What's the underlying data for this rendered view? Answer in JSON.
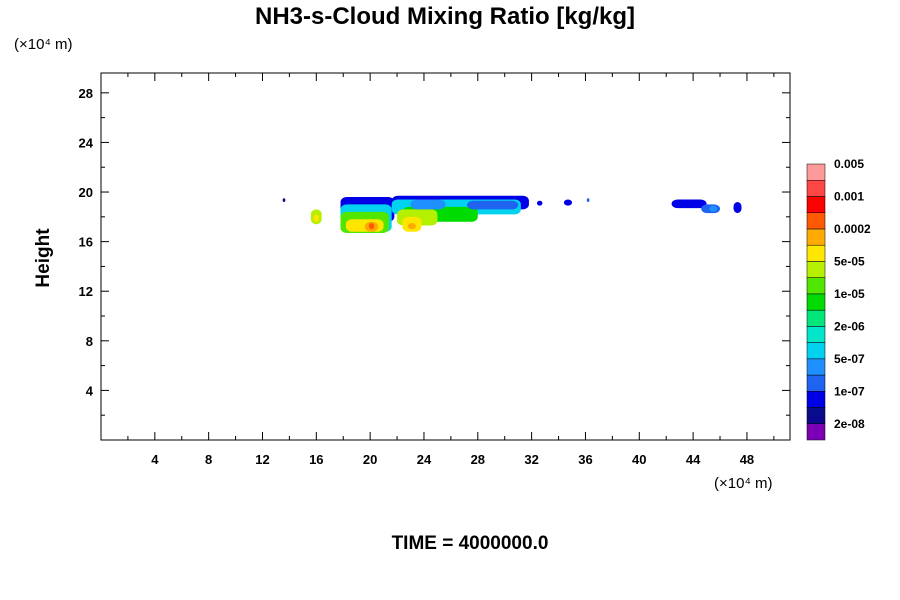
{
  "chart_data": {
    "type": "heatmap",
    "title": "NH3-s-Cloud Mixing Ratio [kg/kg]",
    "xlabel": "",
    "ylabel": "Height",
    "x_unit": "(×10⁴ m)",
    "y_unit": "(×10⁴ m)",
    "xlim": [
      0,
      51.2
    ],
    "ylim": [
      0,
      29.6
    ],
    "x_ticks": [
      4,
      8,
      12,
      16,
      20,
      24,
      28,
      32,
      36,
      40,
      44,
      48
    ],
    "y_ticks": [
      4,
      8,
      12,
      16,
      20,
      24,
      28
    ],
    "footer": "TIME = 4000000.0",
    "colorbar": {
      "colors": [
        "#7b00b5",
        "#0a0a8c",
        "#0000e6",
        "#1e64f0",
        "#1e90ff",
        "#00d2f0",
        "#00e6c8",
        "#00e67a",
        "#00dc00",
        "#50e600",
        "#b4f000",
        "#ffe600",
        "#ffaa00",
        "#ff5a00",
        "#ff0000",
        "#ff4646",
        "#ff9a9a"
      ],
      "labels": [
        "2e-08",
        "1e-07",
        "5e-07",
        "2e-06",
        "1e-05",
        "5e-05",
        "0.0002",
        "0.001",
        "0.005"
      ]
    },
    "regions": [
      {
        "x": [
          15.6,
          16.4
        ],
        "y": [
          17.4,
          18.6
        ],
        "level": 10
      },
      {
        "x": [
          15.8,
          16.2
        ],
        "y": [
          17.6,
          18.2
        ],
        "level": 11
      },
      {
        "x": [
          17.8,
          21.8
        ],
        "y": [
          17.6,
          19.6
        ],
        "level": 2
      },
      {
        "x": [
          17.8,
          21.6
        ],
        "y": [
          16.8,
          19.0
        ],
        "level": 5
      },
      {
        "x": [
          17.8,
          21.4
        ],
        "y": [
          16.7,
          18.4
        ],
        "level": 9
      },
      {
        "x": [
          18.2,
          21.0
        ],
        "y": [
          16.8,
          17.8
        ],
        "level": 11
      },
      {
        "x": [
          19.6,
          20.6
        ],
        "y": [
          16.8,
          17.6
        ],
        "level": 12
      },
      {
        "x": [
          19.9,
          20.3
        ],
        "y": [
          17.0,
          17.5
        ],
        "level": 13
      },
      {
        "x": [
          21.6,
          31.8
        ],
        "y": [
          18.6,
          19.7
        ],
        "level": 2
      },
      {
        "x": [
          21.6,
          31.2
        ],
        "y": [
          18.2,
          19.4
        ],
        "level": 5
      },
      {
        "x": [
          22.4,
          28.0
        ],
        "y": [
          17.6,
          18.8
        ],
        "level": 8
      },
      {
        "x": [
          22.0,
          25.0
        ],
        "y": [
          17.3,
          18.6
        ],
        "level": 10
      },
      {
        "x": [
          22.4,
          23.8
        ],
        "y": [
          16.8,
          18.0
        ],
        "level": 11
      },
      {
        "x": [
          22.8,
          23.4
        ],
        "y": [
          17.0,
          17.5
        ],
        "level": 12
      },
      {
        "x": [
          23.0,
          25.6
        ],
        "y": [
          18.6,
          19.4
        ],
        "level": 4
      },
      {
        "x": [
          27.2,
          31.0
        ],
        "y": [
          18.6,
          19.3
        ],
        "level": 3
      },
      {
        "x": [
          32.4,
          32.8
        ],
        "y": [
          18.9,
          19.3
        ],
        "level": 2
      },
      {
        "x": [
          34.4,
          35.0
        ],
        "y": [
          18.9,
          19.4
        ],
        "level": 2
      },
      {
        "x": [
          42.4,
          45.0
        ],
        "y": [
          18.7,
          19.4
        ],
        "level": 2
      },
      {
        "x": [
          44.6,
          46.0
        ],
        "y": [
          18.3,
          19.0
        ],
        "level": 3
      },
      {
        "x": [
          45.2,
          45.8
        ],
        "y": [
          18.4,
          18.9
        ],
        "level": 4
      },
      {
        "x": [
          47.0,
          47.6
        ],
        "y": [
          18.3,
          19.2
        ],
        "level": 2
      },
      {
        "x": [
          13.5,
          13.7
        ],
        "y": [
          19.2,
          19.5
        ],
        "level": 1
      },
      {
        "x": [
          36.1,
          36.3
        ],
        "y": [
          19.2,
          19.5
        ],
        "level": 3
      }
    ]
  }
}
